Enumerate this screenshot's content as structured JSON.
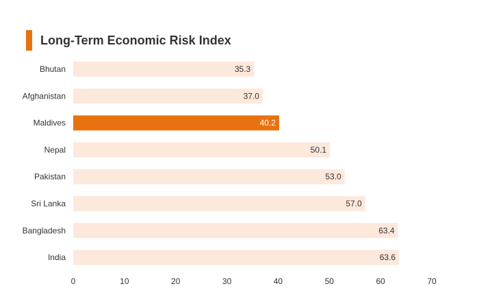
{
  "chart_data": {
    "type": "bar",
    "orientation": "horizontal",
    "title": "Long-Term Economic Risk Index",
    "xlabel": "",
    "ylabel": "",
    "categories": [
      "Bhutan",
      "Afghanistan",
      "Maldives",
      "Nepal",
      "Pakistan",
      "Sri Lanka",
      "Bangladesh",
      "India"
    ],
    "values": [
      35.3,
      37.0,
      40.2,
      50.1,
      53.0,
      57.0,
      63.4,
      63.6
    ],
    "value_labels": [
      "35.3",
      "37.0",
      "40.2",
      "50.1",
      "53.0",
      "57.0",
      "63.4",
      "63.6"
    ],
    "highlight": "Maldives",
    "xlim": [
      0,
      70
    ],
    "xticks": [
      0,
      10,
      20,
      30,
      40,
      50,
      60,
      70
    ],
    "grid": false,
    "colors": {
      "bar": "#FDE8DC",
      "highlight_bar": "#E8720F",
      "accent": "#E8720F",
      "text": "#333333",
      "highlight_text": "#ffffff"
    }
  }
}
